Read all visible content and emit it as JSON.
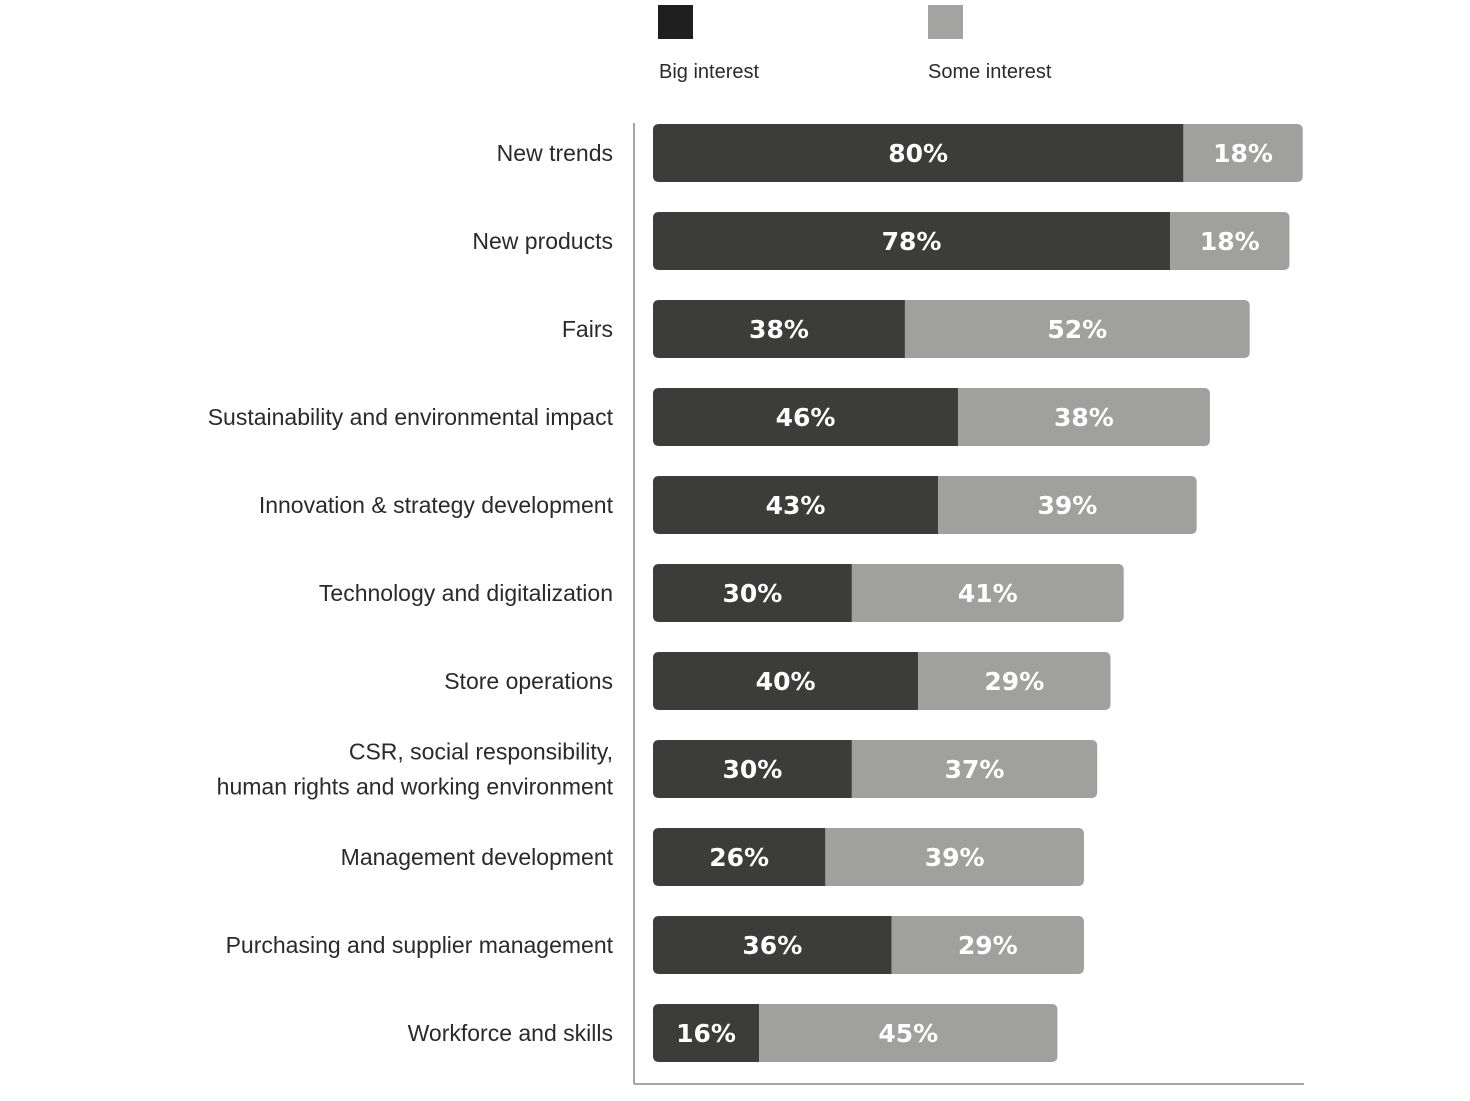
{
  "chart_data": {
    "type": "bar",
    "orientation": "horizontal",
    "stacked": true,
    "categories": [
      "New trends",
      "New products",
      "Fairs",
      "Sustainability and environmental impact",
      "Innovation & strategy development",
      "Technology and digitalization",
      "Store operations",
      "CSR, social responsibility,\nhuman rights and working environment",
      "Management development",
      "Purchasing and supplier management",
      "Workforce and skills"
    ],
    "series": [
      {
        "name": "Big interest",
        "color": "#3c3c3b",
        "values": [
          80,
          78,
          38,
          46,
          43,
          30,
          40,
          30,
          26,
          36,
          16
        ],
        "labels": [
          "80%",
          "78%",
          "38%",
          "46%",
          "43%",
          "30%",
          "40%",
          "30%",
          "26%",
          "36%",
          "16%"
        ]
      },
      {
        "name": "Some interest",
        "color": "#a0a09f",
        "values": [
          18,
          18,
          52,
          38,
          39,
          41,
          29,
          37,
          39,
          29,
          45
        ],
        "labels": [
          "18%",
          "18%",
          "52%",
          "38%",
          "39%",
          "41%",
          "29%",
          "37%",
          "39%",
          "29%",
          "45%"
        ]
      }
    ],
    "xlim": [
      0,
      100
    ],
    "grid": false,
    "legend_position": "top"
  },
  "legend": {
    "items": [
      {
        "label": "Big interest",
        "color": "#1f1f1f"
      },
      {
        "label": "Some interest",
        "color": "#a3a3a2"
      }
    ]
  },
  "colors": {
    "axis": "#888888"
  }
}
